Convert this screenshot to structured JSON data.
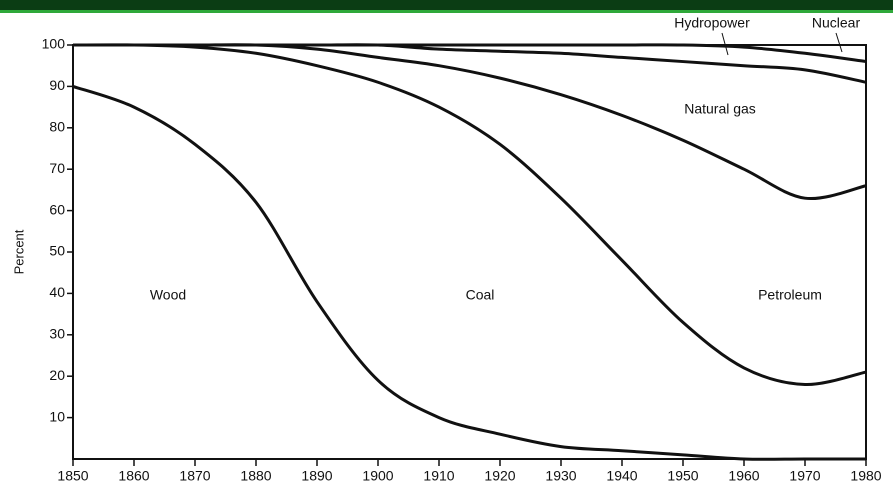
{
  "chart_data": {
    "type": "stacked_line",
    "y_label": "Percent",
    "x": [
      1850,
      1860,
      1870,
      1880,
      1890,
      1900,
      1910,
      1920,
      1930,
      1940,
      1950,
      1960,
      1970,
      1980
    ],
    "series": [
      {
        "name": "Wood",
        "color": "#111111",
        "values": [
          90,
          85,
          76,
          62,
          38,
          19,
          10,
          6,
          3,
          2,
          1,
          0,
          0,
          0
        ]
      },
      {
        "name": "Coal",
        "color": "#111111",
        "values": [
          10,
          15,
          23.5,
          36,
          57,
          72,
          75,
          70,
          60,
          46,
          32,
          22,
          18,
          21
        ]
      },
      {
        "name": "Petroleum",
        "color": "#111111",
        "values": [
          0,
          0,
          0.5,
          2,
          4,
          6,
          10,
          16,
          25,
          35,
          44,
          48,
          45,
          45
        ]
      },
      {
        "name": "Natural gas",
        "color": "#111111",
        "values": [
          0,
          0,
          0,
          0,
          1,
          3,
          4,
          6.5,
          10,
          14,
          19,
          25,
          31,
          25
        ]
      },
      {
        "name": "Hydropower",
        "color": "#111111",
        "values": [
          0,
          0,
          0,
          0,
          0,
          0,
          1,
          1.5,
          2,
          3,
          4,
          4.5,
          4,
          5
        ]
      },
      {
        "name": "Nuclear",
        "color": "#111111",
        "values": [
          0,
          0,
          0,
          0,
          0,
          0,
          0,
          0,
          0,
          0,
          0,
          0.5,
          2,
          4
        ]
      }
    ],
    "xlim": [
      1850,
      1980
    ],
    "xticks": [
      1850,
      1860,
      1870,
      1880,
      1890,
      1900,
      1910,
      1920,
      1930,
      1940,
      1950,
      1960,
      1970,
      1980
    ],
    "ylim": [
      0,
      100
    ],
    "yticks": [
      10,
      20,
      30,
      40,
      50,
      60,
      70,
      80,
      90,
      100
    ],
    "grid": false
  }
}
